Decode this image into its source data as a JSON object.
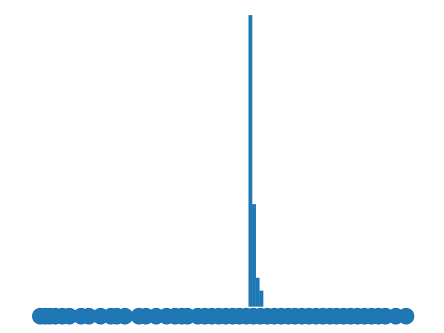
{
  "chart_data": [
    {
      "type": "histogram",
      "color": "#1f77b4",
      "bins": [
        0,
        1,
        2,
        3,
        4
      ],
      "values": [
        91,
        32,
        9,
        5
      ],
      "xlim": [
        -60,
        45
      ],
      "ylim": [
        -5,
        91
      ]
    },
    {
      "type": "scatter",
      "color": "#1f77b4",
      "x": [
        -56.6,
        -55.3,
        -54,
        -52.5,
        -50.6,
        -48.7,
        -45.5,
        -43.4,
        -40.2,
        -37.4,
        -35.8,
        -33.6,
        -29.8,
        -27.9,
        -25.1,
        -22.3,
        -20,
        -18.1,
        -16.6,
        -13.8,
        -11.9,
        -10,
        -8.1,
        -6.2,
        -4.3,
        -2.5,
        -0.6,
        1.3,
        3.2,
        5.1,
        7,
        8.9,
        10.8,
        12.6,
        14.5,
        16.4,
        18.3,
        20.2,
        22.1,
        23.9,
        25.8,
        27.7,
        29.6,
        31.5,
        33.4,
        35.3,
        37.2,
        40,
        42.8
      ],
      "y": [
        -3,
        -3,
        -3,
        -3,
        -3,
        -3,
        -3,
        -3,
        -3,
        -3,
        -3,
        -3,
        -3,
        -3,
        -3,
        -3,
        -3,
        -3,
        -3,
        -3,
        -3,
        -3,
        -3,
        -3,
        -3,
        -3,
        -3,
        -3,
        -3,
        -3,
        -3,
        -3,
        -3,
        -3,
        -3,
        -3,
        -3,
        -3,
        -3,
        -3,
        -3,
        -3,
        -3,
        -3,
        -3,
        -3,
        -3,
        -3,
        -3
      ],
      "xlim": [
        -60,
        45
      ],
      "ylim": [
        -5,
        91
      ]
    }
  ]
}
